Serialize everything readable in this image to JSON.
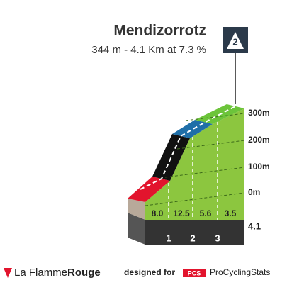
{
  "header": {
    "title": "Mendizorrotz",
    "subtitle": "344 m - 4.1 Km at 7.3 %",
    "category": "2"
  },
  "profile": {
    "altitudes": [
      "300m",
      "200m",
      "100m",
      "0m"
    ],
    "gradients": [
      "8.0",
      "12.5",
      "5.6",
      "3.5"
    ],
    "km_markers": [
      "1",
      "2",
      "3"
    ],
    "total_km": "4.1"
  },
  "footer": {
    "brand_light": "La Flamme",
    "brand_bold": "Rouge",
    "designed_for": "designed for",
    "pcs_badge": "PCS",
    "pcs_name": "ProCyclingStats"
  }
}
